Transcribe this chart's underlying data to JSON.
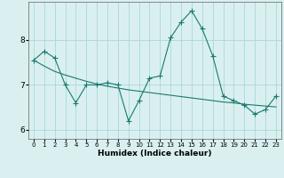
{
  "xlabel": "Humidex (Indice chaleur)",
  "x_values": [
    0,
    1,
    2,
    3,
    4,
    5,
    6,
    7,
    8,
    9,
    10,
    11,
    12,
    13,
    14,
    15,
    16,
    17,
    18,
    19,
    20,
    21,
    22,
    23
  ],
  "y_data": [
    7.55,
    7.75,
    7.6,
    7.0,
    6.6,
    7.0,
    7.0,
    7.05,
    7.0,
    6.2,
    6.65,
    7.15,
    7.2,
    8.05,
    8.4,
    8.65,
    8.25,
    7.65,
    6.75,
    6.65,
    6.55,
    6.35,
    6.45,
    6.75
  ],
  "y_trend": [
    7.55,
    7.42,
    7.3,
    7.22,
    7.15,
    7.08,
    7.02,
    6.97,
    6.93,
    6.89,
    6.86,
    6.83,
    6.8,
    6.77,
    6.74,
    6.71,
    6.68,
    6.65,
    6.62,
    6.6,
    6.57,
    6.55,
    6.53,
    6.51
  ],
  "line_color": "#1a7a6e",
  "trend_color": "#1a7a6e",
  "bg_color": "#daf0f0",
  "grid_color": "#aad8d8",
  "ylim": [
    5.8,
    8.85
  ],
  "yticks": [
    6,
    7,
    8
  ],
  "marker": "+"
}
